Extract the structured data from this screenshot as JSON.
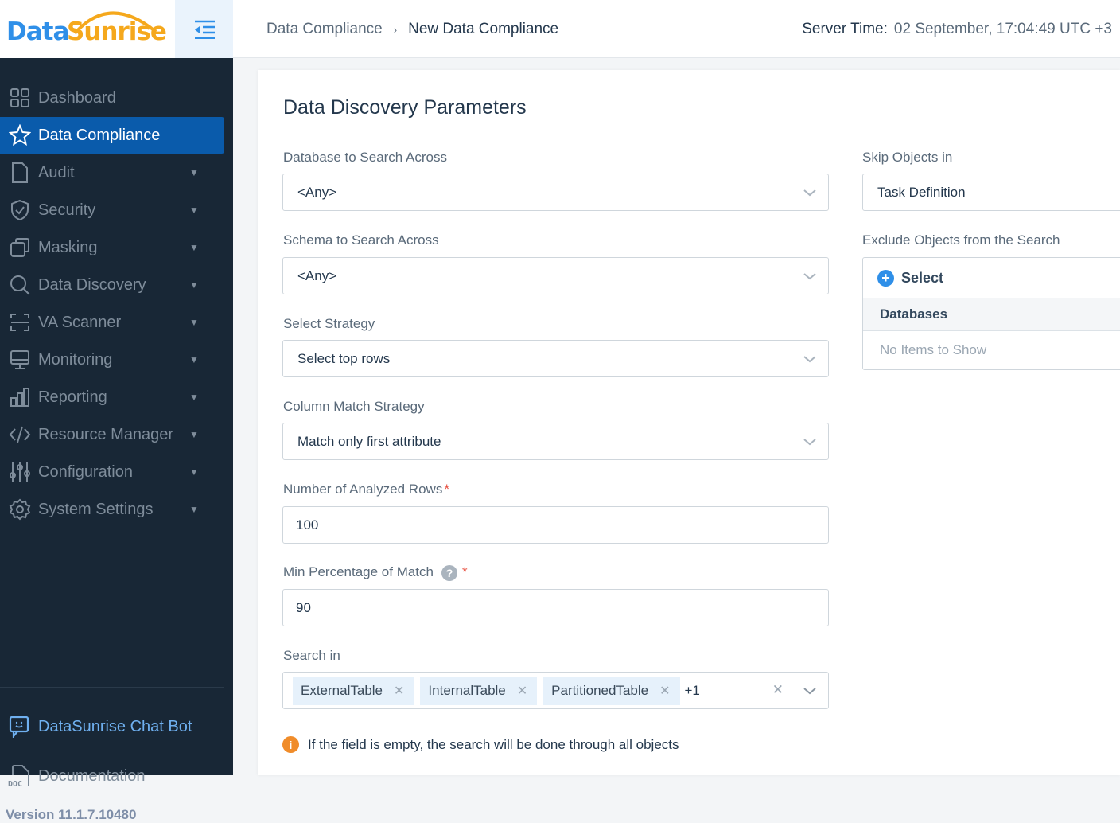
{
  "brand": {
    "logo_part1": "Data",
    "logo_part2": "Sunrise",
    "blue": "#2f8fe8",
    "orange": "#f5a81c"
  },
  "header": {
    "breadcrumb": [
      "Data Compliance",
      "New Data Compliance"
    ],
    "server_time_label": "Server Time:",
    "server_time_value": "02 September, 17:04:49  UTC +3"
  },
  "sidebar": {
    "items": [
      {
        "label": "Dashboard",
        "icon": "grid-icon",
        "expandable": false
      },
      {
        "label": "Data Compliance",
        "icon": "star-icon",
        "expandable": false,
        "active": true
      },
      {
        "label": "Audit",
        "icon": "document-icon",
        "expandable": true
      },
      {
        "label": "Security",
        "icon": "shield-icon",
        "expandable": true
      },
      {
        "label": "Masking",
        "icon": "mask-icon",
        "expandable": true
      },
      {
        "label": "Data Discovery",
        "icon": "search-icon",
        "expandable": true
      },
      {
        "label": "VA Scanner",
        "icon": "scanner-icon",
        "expandable": true
      },
      {
        "label": "Monitoring",
        "icon": "monitor-icon",
        "expandable": true
      },
      {
        "label": "Reporting",
        "icon": "bar-chart-icon",
        "expandable": true
      },
      {
        "label": "Resource Manager",
        "icon": "code-icon",
        "expandable": true
      },
      {
        "label": "Configuration",
        "icon": "sliders-icon",
        "expandable": true
      },
      {
        "label": "System Settings",
        "icon": "gear-icon",
        "expandable": true
      }
    ],
    "chatbot": "DataSunrise Chat Bot",
    "documentation": "Documentation",
    "doc_icon_text": "DOC",
    "version": "Version 11.1.7.10480"
  },
  "form": {
    "title": "Data Discovery Parameters",
    "database": {
      "label": "Database to Search Across",
      "value": "<Any>"
    },
    "schema": {
      "label": "Schema to Search Across",
      "value": "<Any>"
    },
    "strategy": {
      "label": "Select Strategy",
      "value": "Select top rows"
    },
    "column_match": {
      "label": "Column Match Strategy",
      "value": "Match only first attribute"
    },
    "rows": {
      "label": "Number of Analyzed Rows",
      "required": "*",
      "value": "100"
    },
    "min_pct": {
      "label": "Min Percentage of Match",
      "help": "?",
      "required": "*",
      "value": "90"
    },
    "search_in": {
      "label": "Search in",
      "tags": [
        "ExternalTable",
        "InternalTable",
        "PartitionedTable"
      ],
      "more": "+1"
    },
    "note": "If the field is empty, the search will be done through all objects",
    "skip": {
      "label": "Skip Objects in",
      "value": "Task Definition"
    },
    "exclude": {
      "label": "Exclude Objects from the Search",
      "select": "Select",
      "header": "Databases",
      "empty": "No Items to Show"
    }
  }
}
